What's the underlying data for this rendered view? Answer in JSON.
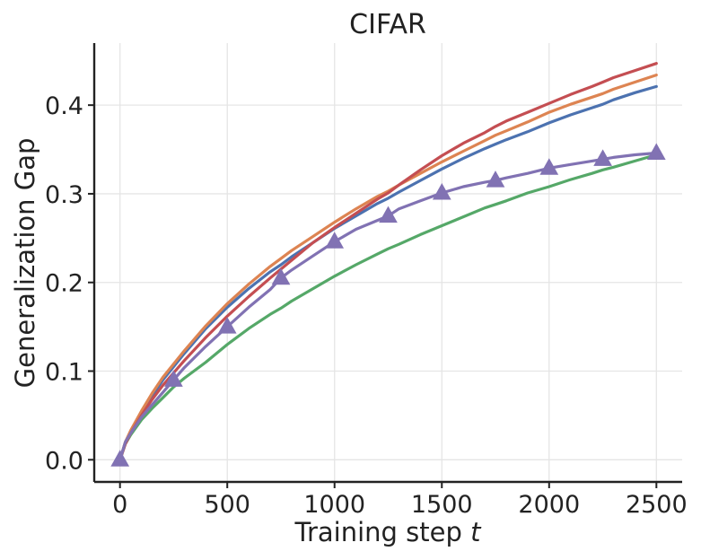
{
  "chart_data": {
    "type": "line",
    "title": "CIFAR",
    "xlabel_prefix": "Training step ",
    "xlabel_var": "t",
    "ylabel": "Generalization Gap",
    "xlim": [
      -120,
      2620
    ],
    "ylim": [
      -0.025,
      0.47
    ],
    "xticks": [
      0,
      500,
      1000,
      1500,
      2000,
      2500
    ],
    "yticks": [
      0.0,
      0.1,
      0.2,
      0.3,
      0.4
    ],
    "ytick_labels": [
      "0.0",
      "0.1",
      "0.2",
      "0.3",
      "0.4"
    ],
    "grid": true,
    "series": [
      {
        "name": "series-green",
        "color": "#55a868",
        "x": [
          0,
          25,
          50,
          100,
          150,
          200,
          250,
          300,
          400,
          500,
          600,
          700,
          750,
          800,
          900,
          1000,
          1100,
          1200,
          1250,
          1300,
          1400,
          1500,
          1600,
          1700,
          1750,
          1800,
          1900,
          2000,
          2100,
          2200,
          2250,
          2300,
          2400,
          2500
        ],
        "y": [
          0.0,
          0.018,
          0.028,
          0.045,
          0.058,
          0.07,
          0.082,
          0.092,
          0.11,
          0.13,
          0.148,
          0.164,
          0.171,
          0.179,
          0.193,
          0.207,
          0.22,
          0.232,
          0.238,
          0.243,
          0.254,
          0.264,
          0.274,
          0.284,
          0.288,
          0.292,
          0.301,
          0.308,
          0.316,
          0.323,
          0.327,
          0.33,
          0.337,
          0.344
        ]
      },
      {
        "name": "series-blue",
        "color": "#4c72b0",
        "x": [
          0,
          25,
          50,
          100,
          150,
          200,
          250,
          300,
          400,
          500,
          600,
          700,
          750,
          800,
          900,
          1000,
          1100,
          1200,
          1250,
          1300,
          1400,
          1500,
          1600,
          1700,
          1750,
          1800,
          1900,
          2000,
          2100,
          2200,
          2250,
          2300,
          2400,
          2500
        ],
        "y": [
          0.0,
          0.02,
          0.032,
          0.052,
          0.072,
          0.09,
          0.105,
          0.12,
          0.148,
          0.172,
          0.193,
          0.212,
          0.22,
          0.229,
          0.245,
          0.261,
          0.275,
          0.289,
          0.295,
          0.302,
          0.315,
          0.328,
          0.34,
          0.351,
          0.356,
          0.361,
          0.37,
          0.38,
          0.389,
          0.397,
          0.401,
          0.406,
          0.414,
          0.421
        ]
      },
      {
        "name": "series-orange",
        "color": "#dd8452",
        "x": [
          0,
          25,
          50,
          100,
          150,
          200,
          250,
          300,
          400,
          500,
          600,
          700,
          750,
          800,
          900,
          1000,
          1100,
          1200,
          1250,
          1300,
          1400,
          1500,
          1600,
          1700,
          1750,
          1800,
          1900,
          2000,
          2100,
          2200,
          2250,
          2300,
          2400,
          2500
        ],
        "y": [
          0.0,
          0.02,
          0.033,
          0.055,
          0.075,
          0.093,
          0.108,
          0.123,
          0.151,
          0.176,
          0.198,
          0.218,
          0.227,
          0.236,
          0.252,
          0.268,
          0.283,
          0.297,
          0.303,
          0.31,
          0.323,
          0.336,
          0.348,
          0.36,
          0.366,
          0.371,
          0.381,
          0.392,
          0.401,
          0.409,
          0.413,
          0.418,
          0.426,
          0.434
        ]
      },
      {
        "name": "series-red",
        "color": "#c44e52",
        "x": [
          0,
          25,
          50,
          100,
          150,
          200,
          250,
          300,
          400,
          500,
          600,
          700,
          750,
          800,
          900,
          1000,
          1100,
          1200,
          1250,
          1300,
          1400,
          1500,
          1600,
          1700,
          1750,
          1800,
          1900,
          2000,
          2100,
          2200,
          2250,
          2300,
          2400,
          2500
        ],
        "y": [
          0.0,
          0.018,
          0.03,
          0.05,
          0.068,
          0.084,
          0.098,
          0.112,
          0.138,
          0.162,
          0.184,
          0.205,
          0.215,
          0.225,
          0.245,
          0.262,
          0.278,
          0.294,
          0.301,
          0.31,
          0.327,
          0.343,
          0.357,
          0.369,
          0.376,
          0.382,
          0.392,
          0.402,
          0.412,
          0.421,
          0.426,
          0.431,
          0.439,
          0.447
        ]
      },
      {
        "name": "series-purple",
        "color": "#8172b3",
        "marker": "triangle",
        "marker_x": [
          0,
          250,
          500,
          750,
          1000,
          1250,
          1500,
          1750,
          2000,
          2250,
          2500
        ],
        "x": [
          0,
          25,
          50,
          100,
          150,
          200,
          250,
          300,
          400,
          500,
          600,
          700,
          750,
          800,
          900,
          1000,
          1100,
          1200,
          1250,
          1300,
          1400,
          1500,
          1600,
          1700,
          1750,
          1800,
          1900,
          2000,
          2100,
          2200,
          2250,
          2300,
          2400,
          2500
        ],
        "y": [
          0.0,
          0.02,
          0.03,
          0.048,
          0.062,
          0.076,
          0.09,
          0.104,
          0.128,
          0.15,
          0.172,
          0.192,
          0.205,
          0.214,
          0.23,
          0.246,
          0.26,
          0.27,
          0.275,
          0.283,
          0.292,
          0.301,
          0.308,
          0.313,
          0.315,
          0.318,
          0.323,
          0.329,
          0.333,
          0.337,
          0.339,
          0.341,
          0.344,
          0.346
        ]
      }
    ]
  }
}
